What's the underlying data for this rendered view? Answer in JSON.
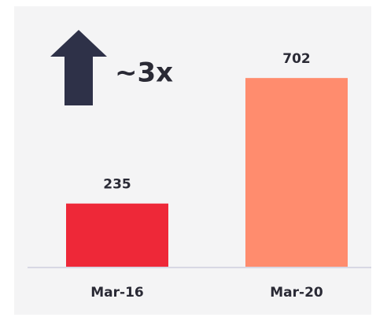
{
  "chart_data": {
    "type": "bar",
    "annotation": "~3x",
    "categories": [
      "Mar-16",
      "Mar-20"
    ],
    "values": [
      235,
      702
    ],
    "colors": [
      "#ee2838",
      "#ff8c6e"
    ],
    "ylim": [
      0,
      720
    ]
  }
}
